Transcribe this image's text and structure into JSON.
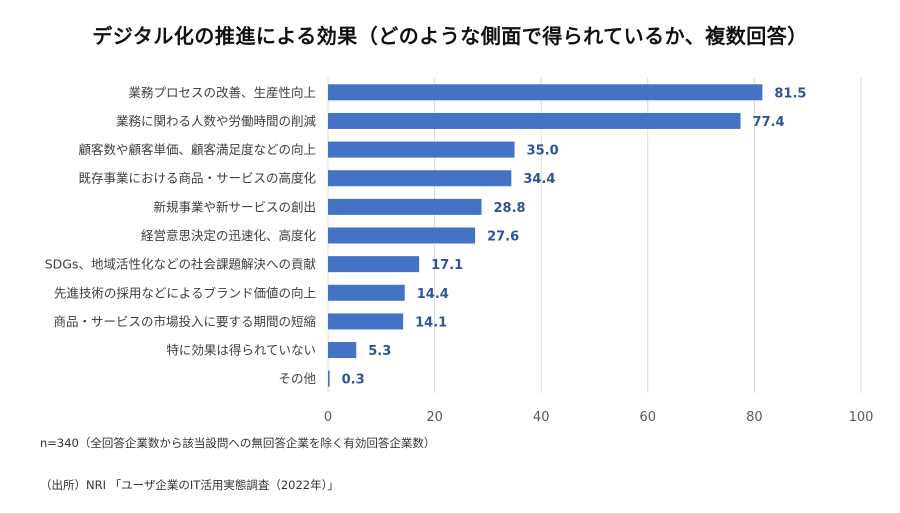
{
  "chart_data": {
    "type": "bar",
    "orientation": "horizontal",
    "title": "デジタル化の推進による効果（どのような側面で得られているか、複数回答）",
    "xlabel": "",
    "ylabel": "",
    "xlim": [
      0,
      100
    ],
    "xticks": [
      0,
      20,
      40,
      60,
      80,
      100
    ],
    "grid": true,
    "bar_color": "#4472c4",
    "label_color": "#2f5597",
    "categories": [
      "業務プロセスの改善、生産性向上",
      "業務に関わる人数や労働時間の削減",
      "顧客数や顧客単価、顧客満足度などの向上",
      "既存事業における商品・サービスの高度化",
      "新規事業や新サービスの創出",
      "経営意思決定の迅速化、高度化",
      "SDGs、地域活性化などの社会課題解決への貢献",
      "先進技術の採用などによるブランド価値の向上",
      "商品・サービスの市場投入に要する期間の短縮",
      "特に効果は得られていない",
      "その他"
    ],
    "values": [
      81.5,
      77.4,
      35.0,
      34.4,
      28.8,
      27.6,
      17.1,
      14.4,
      14.1,
      5.3,
      0.3
    ],
    "value_labels": [
      "81.5",
      "77.4",
      "35.0",
      "34.4",
      "28.8",
      "27.6",
      "17.1",
      "14.4",
      "14.1",
      "5.3",
      "0.3"
    ]
  },
  "notes": {
    "sample": "n=340（全回答企業数から該当設問への無回答企業を除く有効回答企業数）",
    "source": "（出所）NRI 「ユーザ企業のIT活用実態調査（2022年）」"
  }
}
